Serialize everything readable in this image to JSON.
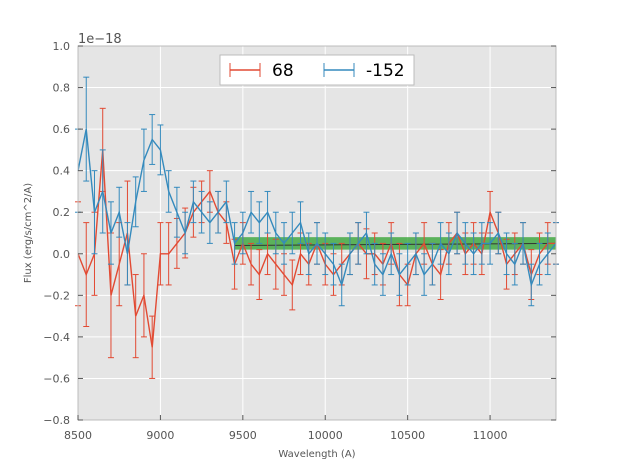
{
  "chart_data": {
    "type": "line",
    "subtype": "errorbar",
    "title": "",
    "xlabel": "Wavelength (A)",
    "ylabel": "Flux (erg/s/cm^2/A)",
    "y_offset_label": "1e−18",
    "xlim": [
      8500,
      11400
    ],
    "ylim": [
      -0.8,
      1.0
    ],
    "x_ticks": [
      8500,
      9000,
      9500,
      10000,
      10500,
      11000
    ],
    "x_tick_labels": [
      "8500",
      "9000",
      "9500",
      "10000",
      "10500",
      "11000"
    ],
    "y_ticks": [
      -0.8,
      -0.6,
      -0.4,
      -0.2,
      0.0,
      0.2,
      0.4,
      0.6,
      0.8,
      1.0
    ],
    "y_tick_labels": [
      "−0.8",
      "−0.6",
      "−0.4",
      "−0.2",
      "0.0",
      "0.2",
      "0.4",
      "0.6",
      "0.8",
      "1.0"
    ],
    "grid": true,
    "legend_position": "top-center",
    "background": "#e5e5e5",
    "band": {
      "x": [
        9450,
        11400
      ],
      "y": [
        0.02,
        0.08
      ],
      "color": "#2ca02c"
    },
    "baseline": {
      "x": [
        9450,
        11400
      ],
      "y": [
        0.04,
        0.05
      ],
      "color": "#333333"
    },
    "series": [
      {
        "name": "68",
        "color": "#e24a33",
        "x": [
          8500,
          8550,
          8600,
          8650,
          8700,
          8750,
          8800,
          8850,
          8900,
          8950,
          9000,
          9050,
          9100,
          9150,
          9200,
          9250,
          9300,
          9350,
          9400,
          9450,
          9500,
          9550,
          9600,
          9650,
          9700,
          9750,
          9800,
          9850,
          9900,
          9950,
          10000,
          10050,
          10100,
          10150,
          10200,
          10250,
          10300,
          10350,
          10400,
          10450,
          10500,
          10550,
          10600,
          10650,
          10700,
          10750,
          10800,
          10850,
          10900,
          10950,
          11000,
          11050,
          11100,
          11150,
          11200,
          11250,
          11300,
          11350,
          11400
        ],
        "y": [
          0.0,
          -0.1,
          0.0,
          0.5,
          -0.2,
          -0.05,
          0.1,
          -0.3,
          -0.2,
          -0.45,
          0.0,
          0.0,
          0.05,
          0.1,
          0.2,
          0.25,
          0.3,
          0.2,
          0.15,
          -0.05,
          0.05,
          -0.05,
          -0.1,
          0.0,
          -0.05,
          -0.1,
          -0.15,
          0.0,
          -0.05,
          0.05,
          -0.05,
          -0.1,
          -0.05,
          0.0,
          0.05,
          0.0,
          0.0,
          -0.05,
          0.05,
          -0.1,
          -0.15,
          0.0,
          0.05,
          -0.05,
          -0.1,
          0.05,
          0.1,
          0.0,
          0.05,
          0.0,
          0.2,
          0.1,
          -0.05,
          0.0,
          0.05,
          -0.1,
          0.0,
          0.05,
          0.05
        ],
        "err": [
          0.25,
          0.25,
          0.2,
          0.2,
          0.3,
          0.2,
          0.25,
          0.2,
          0.2,
          0.15,
          0.15,
          0.15,
          0.12,
          0.12,
          0.12,
          0.1,
          0.1,
          0.1,
          0.1,
          0.12,
          0.1,
          0.1,
          0.12,
          0.1,
          0.12,
          0.1,
          0.12,
          0.1,
          0.1,
          0.1,
          0.1,
          0.1,
          0.1,
          0.1,
          0.1,
          0.12,
          0.1,
          0.1,
          0.1,
          0.15,
          0.1,
          0.1,
          0.1,
          0.1,
          0.12,
          0.1,
          0.1,
          0.1,
          0.1,
          0.1,
          0.1,
          0.1,
          0.12,
          0.1,
          0.1,
          0.12,
          0.1,
          0.1,
          0.1
        ]
      },
      {
        "name": "-152",
        "color": "#348abd",
        "x": [
          8500,
          8550,
          8600,
          8650,
          8700,
          8750,
          8800,
          8850,
          8900,
          8950,
          9000,
          9050,
          9100,
          9150,
          9200,
          9250,
          9300,
          9350,
          9400,
          9450,
          9500,
          9550,
          9600,
          9650,
          9700,
          9750,
          9800,
          9850,
          9900,
          9950,
          10000,
          10050,
          10100,
          10150,
          10200,
          10250,
          10300,
          10350,
          10400,
          10450,
          10500,
          10550,
          10600,
          10650,
          10700,
          10750,
          10800,
          10850,
          10900,
          10950,
          11000,
          11050,
          11100,
          11150,
          11200,
          11250,
          11300,
          11350,
          11400
        ],
        "y": [
          0.4,
          0.6,
          0.2,
          0.3,
          0.1,
          0.2,
          0.0,
          0.25,
          0.45,
          0.55,
          0.5,
          0.3,
          0.2,
          0.1,
          0.25,
          0.2,
          0.15,
          0.2,
          0.25,
          0.05,
          0.1,
          0.2,
          0.15,
          0.2,
          0.1,
          0.05,
          0.1,
          0.15,
          0.0,
          0.05,
          0.0,
          -0.05,
          -0.15,
          0.0,
          0.05,
          0.1,
          -0.05,
          -0.1,
          0.0,
          -0.1,
          -0.05,
          0.0,
          -0.1,
          -0.05,
          0.05,
          0.0,
          0.1,
          0.05,
          0.0,
          0.05,
          0.05,
          0.1,
          0.0,
          -0.05,
          0.05,
          -0.15,
          -0.05,
          0.0,
          0.05
        ],
        "err": [
          0.2,
          0.25,
          0.2,
          0.2,
          0.15,
          0.12,
          0.15,
          0.12,
          0.15,
          0.12,
          0.12,
          0.1,
          0.12,
          0.1,
          0.1,
          0.1,
          0.1,
          0.1,
          0.1,
          0.1,
          0.1,
          0.1,
          0.1,
          0.1,
          0.1,
          0.1,
          0.1,
          0.1,
          0.1,
          0.1,
          0.1,
          0.1,
          0.1,
          0.1,
          0.1,
          0.1,
          0.1,
          0.1,
          0.1,
          0.1,
          0.1,
          0.1,
          0.1,
          0.1,
          0.1,
          0.1,
          0.1,
          0.1,
          0.1,
          0.1,
          0.1,
          0.1,
          0.1,
          0.1,
          0.1,
          0.1,
          0.1,
          0.1,
          0.1
        ]
      }
    ]
  }
}
